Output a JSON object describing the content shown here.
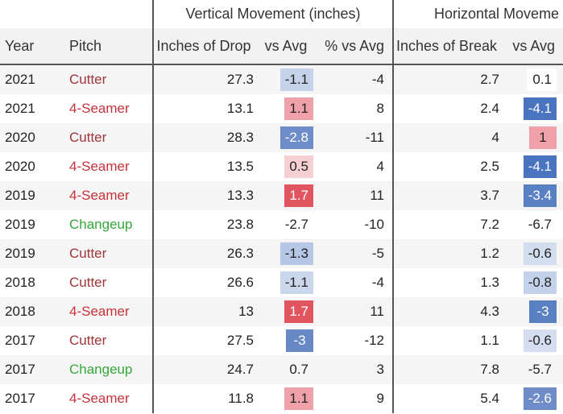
{
  "table": {
    "group_headers": [
      "Vertical Movement (inches)",
      "Horizontal Moveme"
    ],
    "columns": [
      "Year",
      "Pitch",
      "Inches of Drop",
      "vs Avg",
      "% vs Avg",
      "Inches of Break",
      "vs Avg"
    ],
    "rows": [
      {
        "cells": [
          2021,
          "Cutter",
          27.3,
          -1.1,
          -4,
          2.7,
          0.1
        ],
        "pitch_color": "#a0353a",
        "drop_vs_avg_color": "#c5d3ea",
        "break_vs_avg_color": "#ffffff"
      },
      {
        "cells": [
          2021,
          "4-Seamer",
          13.1,
          1.1,
          8,
          2.4,
          -4.1
        ],
        "pitch_color": "#c8323c",
        "drop_vs_avg_color": "#f0a0a8",
        "break_vs_avg_color": "#4a73c0"
      },
      {
        "cells": [
          2020,
          "Cutter",
          28.3,
          -2.8,
          -11,
          4,
          1
        ],
        "pitch_color": "#a0353a",
        "drop_vs_avg_color": "#6d8cc8",
        "break_vs_avg_color": "#f0a0a8"
      },
      {
        "cells": [
          2020,
          "4-Seamer",
          13.5,
          0.5,
          4,
          2.5,
          -4.1
        ],
        "pitch_color": "#c8323c",
        "drop_vs_avg_color": "#f5cfd2",
        "break_vs_avg_color": "#4a73c0"
      },
      {
        "cells": [
          2019,
          "4-Seamer",
          13.3,
          1.7,
          11,
          3.7,
          -3.4
        ],
        "pitch_color": "#c8323c",
        "drop_vs_avg_color": "#e05560",
        "break_vs_avg_color": "#5a80c4"
      },
      {
        "cells": [
          2019,
          "Changeup",
          23.8,
          -2.7,
          -10,
          7.2,
          -6.7
        ],
        "pitch_color": "#35a83a",
        "drop_vs_avg_color": null,
        "break_vs_avg_color": null
      },
      {
        "cells": [
          2019,
          "Cutter",
          26.3,
          -1.3,
          -5,
          1.2,
          -0.6
        ],
        "pitch_color": "#a0353a",
        "drop_vs_avg_color": "#b6c7e6",
        "break_vs_avg_color": "#d2ddef"
      },
      {
        "cells": [
          2018,
          "Cutter",
          26.6,
          -1.1,
          -4,
          1.3,
          -0.8
        ],
        "pitch_color": "#a0353a",
        "drop_vs_avg_color": "#c9d6ec",
        "break_vs_avg_color": "#c3d1ea"
      },
      {
        "cells": [
          2018,
          "4-Seamer",
          13,
          1.7,
          11,
          4.3,
          -3
        ],
        "pitch_color": "#c8323c",
        "drop_vs_avg_color": "#e05560",
        "break_vs_avg_color": "#5a80c4"
      },
      {
        "cells": [
          2017,
          "Cutter",
          27.5,
          -3,
          -12,
          1.1,
          -0.6
        ],
        "pitch_color": "#a0353a",
        "drop_vs_avg_color": "#6889c6",
        "break_vs_avg_color": "#d5def0"
      },
      {
        "cells": [
          2017,
          "Changeup",
          24.7,
          0.7,
          3,
          7.8,
          -5.7
        ],
        "pitch_color": "#35a83a",
        "drop_vs_avg_color": null,
        "break_vs_avg_color": null
      },
      {
        "cells": [
          2017,
          "4-Seamer",
          11.8,
          1.1,
          9,
          5.4,
          -2.6
        ],
        "pitch_color": "#c8323c",
        "drop_vs_avg_color": "#f0a0a8",
        "break_vs_avg_color": "#6d8cc8"
      }
    ]
  }
}
